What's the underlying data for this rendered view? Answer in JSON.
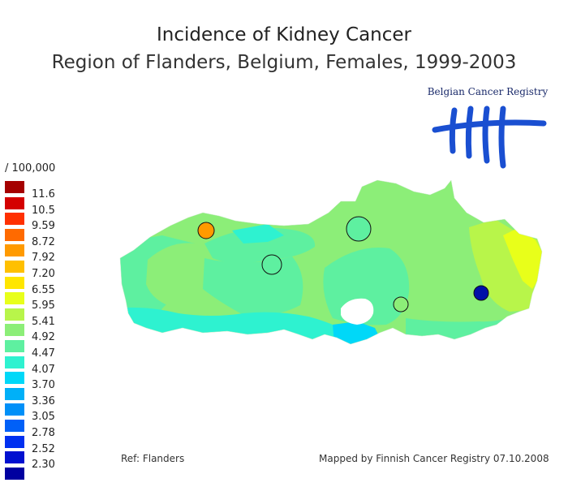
{
  "title": "Incidence of Kidney Cancer",
  "subtitle": "Region of Flanders, Belgium, Females, 1999-2003",
  "logo": {
    "text": "Belgian Cancer Registry",
    "color": "#1a4fd1"
  },
  "legend": {
    "unit": "/ 100,000",
    "items": [
      {
        "color": "#a50000",
        "label": "11.6"
      },
      {
        "color": "#d40000",
        "label": "10.5"
      },
      {
        "color": "#ff3000",
        "label": "9.59"
      },
      {
        "color": "#ff6a00",
        "label": "8.72"
      },
      {
        "color": "#ff9a00",
        "label": "7.92"
      },
      {
        "color": "#ffc000",
        "label": "7.20"
      },
      {
        "color": "#ffe600",
        "label": "6.55"
      },
      {
        "color": "#e8ff1a",
        "label": "5.95"
      },
      {
        "color": "#b8f54a",
        "label": "5.41"
      },
      {
        "color": "#8cee78",
        "label": "4.92"
      },
      {
        "color": "#5ef0a0",
        "label": "4.47"
      },
      {
        "color": "#2ef2d0",
        "label": "4.07"
      },
      {
        "color": "#00d8f8",
        "label": "3.70"
      },
      {
        "color": "#00b0f8",
        "label": "3.36"
      },
      {
        "color": "#0090f8",
        "label": "3.05"
      },
      {
        "color": "#0060f8",
        "label": "2.78"
      },
      {
        "color": "#0030f0",
        "label": "2.52"
      },
      {
        "color": "#0010d0",
        "label": "2.30"
      },
      {
        "color": "#0000a0",
        "label": ""
      }
    ]
  },
  "map_colors": {
    "base": "#8cee78",
    "light_green": "#b8f54a",
    "aqua": "#5ef0a0",
    "turquoise": "#2ef2d0",
    "cyan": "#00d8f8",
    "yellow": "#e8ff1a"
  },
  "markers": [
    {
      "name": "marker-orange",
      "color": "#ff9a00"
    },
    {
      "name": "marker-aqua-west",
      "color": "#5ef0a0"
    },
    {
      "name": "marker-aqua-center",
      "color": "#5ef0a0"
    },
    {
      "name": "marker-green-south",
      "color": "#8cee78"
    },
    {
      "name": "marker-navy-east",
      "color": "#0010a8"
    }
  ],
  "footer": {
    "ref": "Ref: Flanders",
    "credit": "Mapped by Finnish Cancer Registry 07.10.2008"
  }
}
